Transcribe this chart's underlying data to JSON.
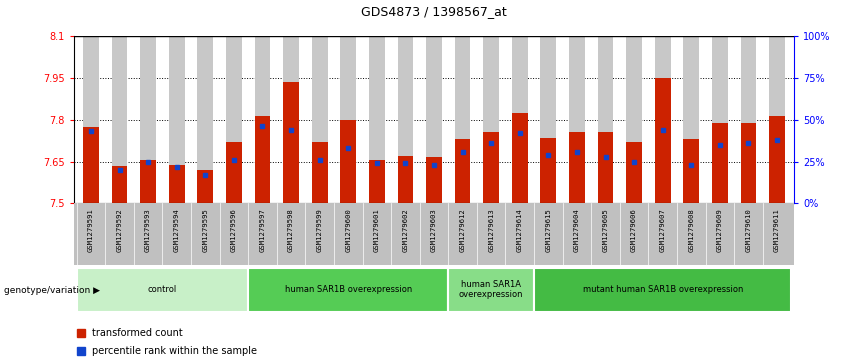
{
  "title": "GDS4873 / 1398567_at",
  "samples": [
    "GSM1279591",
    "GSM1279592",
    "GSM1279593",
    "GSM1279594",
    "GSM1279595",
    "GSM1279596",
    "GSM1279597",
    "GSM1279598",
    "GSM1279599",
    "GSM1279600",
    "GSM1279601",
    "GSM1279602",
    "GSM1279603",
    "GSM1279612",
    "GSM1279613",
    "GSM1279614",
    "GSM1279615",
    "GSM1279604",
    "GSM1279605",
    "GSM1279606",
    "GSM1279607",
    "GSM1279608",
    "GSM1279609",
    "GSM1279610",
    "GSM1279611"
  ],
  "red_values": [
    7.775,
    7.635,
    7.655,
    7.638,
    7.62,
    7.72,
    7.815,
    7.935,
    7.72,
    7.8,
    7.655,
    7.67,
    7.665,
    7.73,
    7.755,
    7.825,
    7.735,
    7.755,
    7.755,
    7.72,
    7.95,
    7.73,
    7.79,
    7.79,
    7.815
  ],
  "blue_values_pct": [
    43,
    20,
    25,
    22,
    17,
    26,
    46,
    44,
    26,
    33,
    24,
    24,
    23,
    31,
    36,
    42,
    29,
    31,
    28,
    25,
    44,
    23,
    35,
    36,
    38
  ],
  "ymin": 7.5,
  "ymax": 8.1,
  "yticks": [
    7.5,
    7.65,
    7.8,
    7.95,
    8.1
  ],
  "ytick_labels": [
    "7.5",
    "7.65",
    "7.8",
    "7.95",
    "8.1"
  ],
  "right_yticks": [
    0,
    25,
    50,
    75,
    100
  ],
  "right_ytick_labels": [
    "0%",
    "25%",
    "50%",
    "75%",
    "100%"
  ],
  "groups": [
    {
      "label": "control",
      "start": 0,
      "end": 5,
      "color": "#c8f0c8"
    },
    {
      "label": "human SAR1B overexpression",
      "start": 6,
      "end": 12,
      "color": "#55cc55"
    },
    {
      "label": "human SAR1A\noverexpression",
      "start": 13,
      "end": 15,
      "color": "#88dd88"
    },
    {
      "label": "mutant human SAR1B overexpression",
      "start": 16,
      "end": 24,
      "color": "#44bb44"
    }
  ],
  "red_color": "#cc2200",
  "blue_color": "#1144cc",
  "bar_width": 0.55,
  "bar_bg_color": "#c8c8c8",
  "xtick_bg_color": "#c0c0c0",
  "grid_color": "#000000",
  "genotype_label": "genotype/variation",
  "legend_red": "transformed count",
  "legend_blue": "percentile rank within the sample"
}
